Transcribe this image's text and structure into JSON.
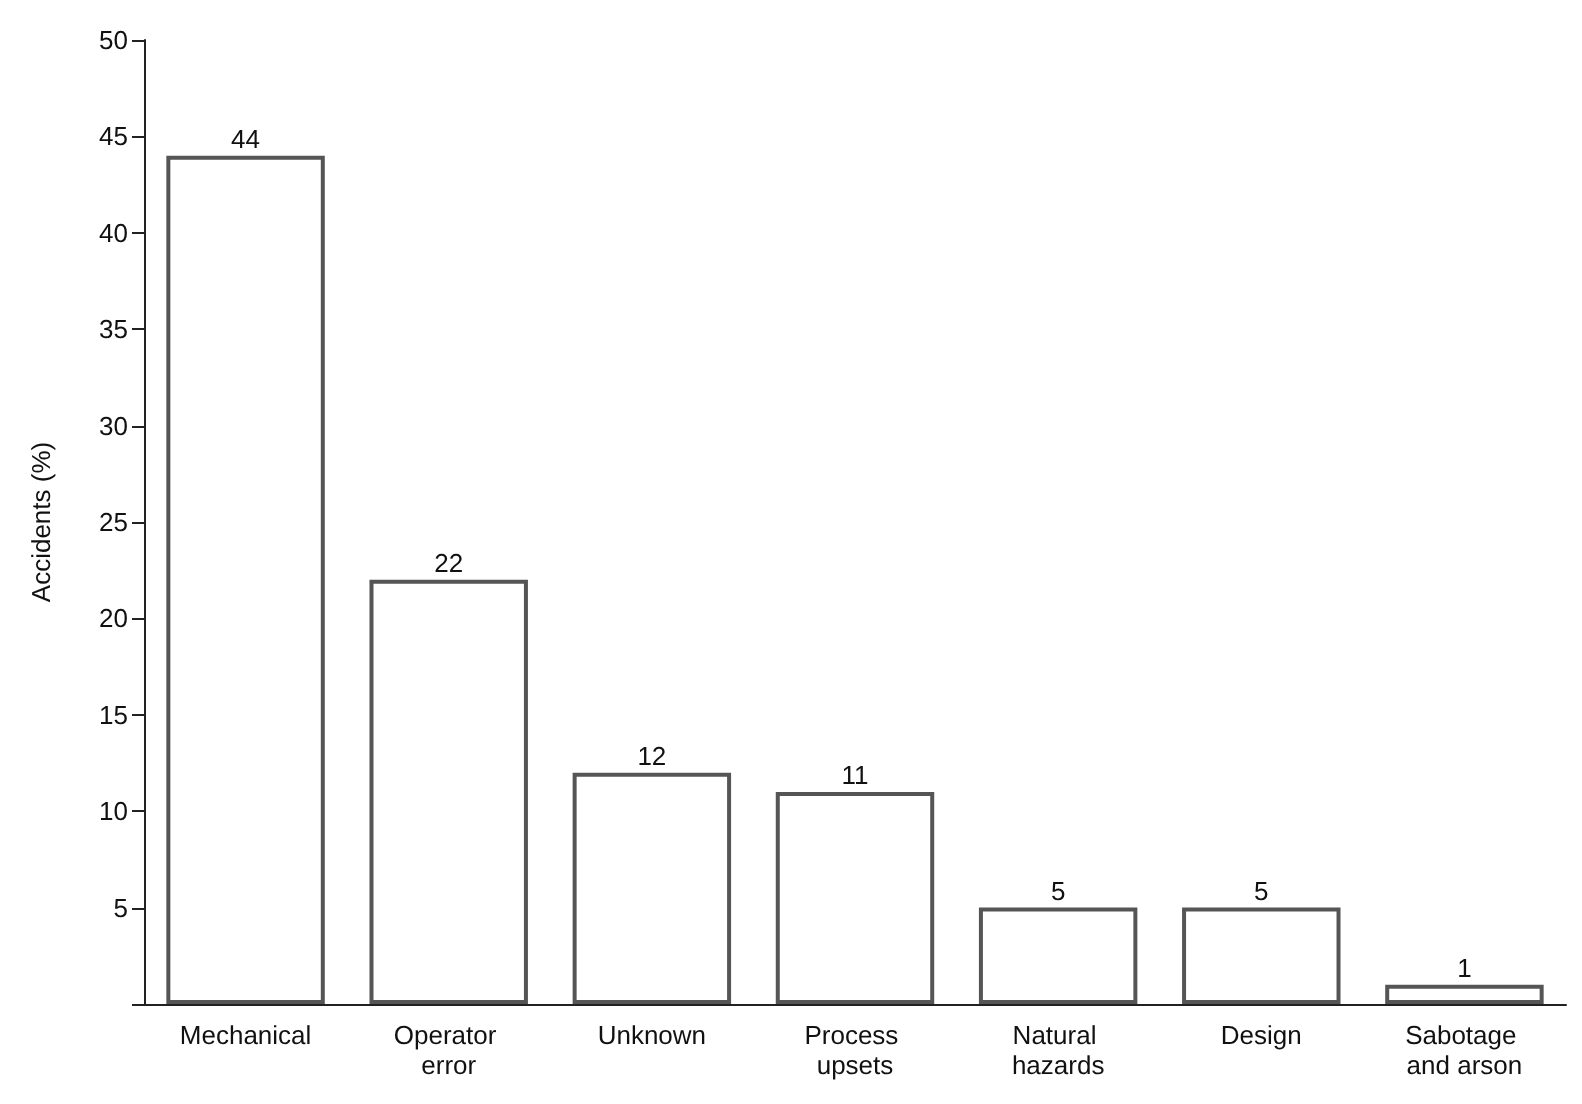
{
  "chart_data": {
    "type": "bar",
    "ylabel": "Accidents (%)",
    "categories": [
      "Mechanical",
      "Operator error",
      "Unknown",
      "Process upsets",
      "Natural hazards",
      "Design",
      "Sabotage and arson"
    ],
    "values": [
      44,
      22,
      12,
      11,
      5,
      5,
      1
    ],
    "color": "#ffffff",
    "ylim": [
      0,
      50
    ],
    "yticks": [
      {
        "value": 0,
        "label": null
      },
      5,
      10,
      15,
      20,
      25,
      30,
      35,
      40,
      45,
      50
    ],
    "data_labels": true
  }
}
